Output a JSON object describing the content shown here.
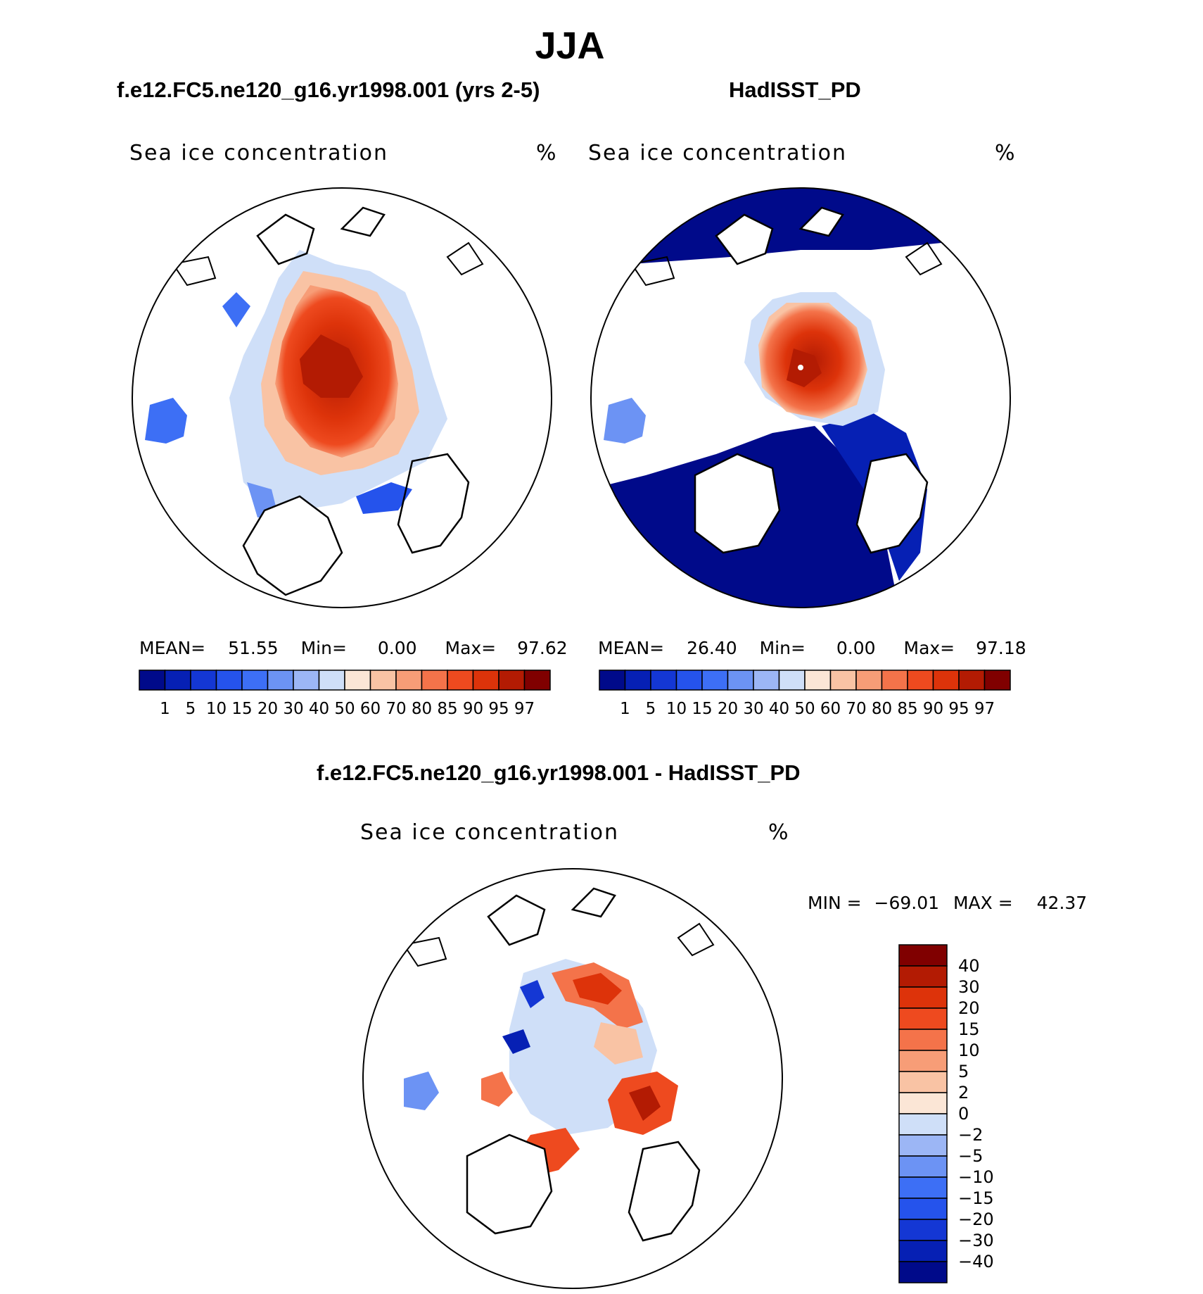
{
  "season": "JJA",
  "panels": [
    {
      "title": "f.e12.FC5.ne120_g16.yr1998.001 (yrs 2-5)",
      "variable": "Sea ice concentration",
      "units": "%",
      "stats": {
        "mean_label": "MEAN=",
        "mean": "51.55",
        "min_label": "Min=",
        "min": "0.00",
        "max_label": "Max=",
        "max": "97.62"
      }
    },
    {
      "title": "HadISST_PD",
      "variable": "Sea ice concentration",
      "units": "%",
      "stats": {
        "mean_label": "MEAN=",
        "mean": "26.40",
        "min_label": "Min=",
        "min": "0.00",
        "max_label": "Max=",
        "max": "97.18"
      }
    }
  ],
  "difference": {
    "title": "f.e12.FC5.ne120_g16.yr1998.001 - HadISST_PD",
    "variable": "Sea ice concentration",
    "units": "%",
    "min_label": "MIN =",
    "min": "−69.01",
    "max_label": "MAX =",
    "max": "42.37"
  },
  "colorbar_top": {
    "labels": [
      "1",
      "5",
      "10",
      "15",
      "20",
      "30",
      "40",
      "50",
      "60",
      "70",
      "80",
      "85",
      "90",
      "95",
      "97"
    ],
    "colors": [
      "#000a8a",
      "#0620b4",
      "#1437d4",
      "#2553ec",
      "#3d6ff5",
      "#6c93f4",
      "#9cb6f5",
      "#cfdff8",
      "#fbe6d6",
      "#f9c3a4",
      "#f79d77",
      "#f4734a",
      "#ee4a1f",
      "#dd330a",
      "#b31b03",
      "#800000"
    ]
  },
  "colorbar_diff": {
    "labels": [
      "40",
      "30",
      "20",
      "15",
      "10",
      "5",
      "2",
      "0",
      "−2",
      "−5",
      "−10",
      "−15",
      "−20",
      "−30",
      "−40"
    ],
    "colors": [
      "#800000",
      "#b31b03",
      "#dd330a",
      "#ee4a1f",
      "#f4734a",
      "#f79d77",
      "#f9c3a4",
      "#fbe6d6",
      "#cfdff8",
      "#9cb6f5",
      "#6c93f4",
      "#3d6ff5",
      "#2553ec",
      "#1437d4",
      "#0620b4",
      "#000a8a"
    ]
  }
}
